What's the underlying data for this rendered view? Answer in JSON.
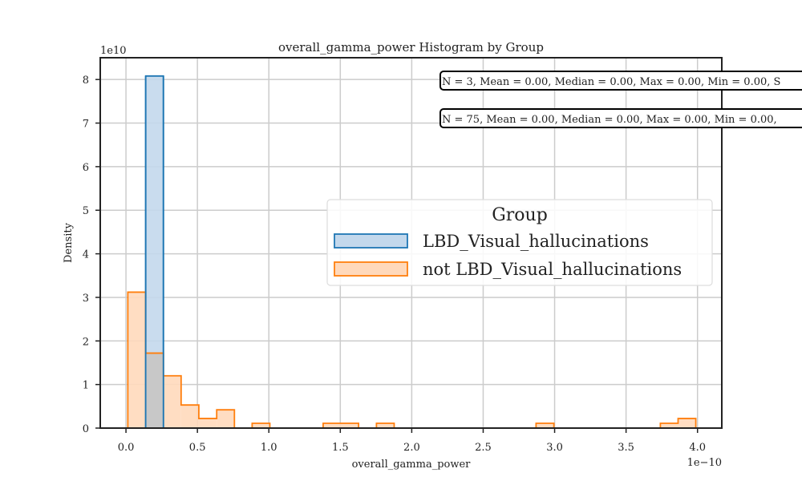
{
  "chart_data": {
    "type": "bar",
    "title": "overall_gamma_power Histogram by Group",
    "xlabel": "overall_gamma_power",
    "ylabel": "Density",
    "x_offset_label": "1e−10",
    "y_offset_label": "1e10",
    "xlim": [
      -1.8e-11,
      4.17e-10
    ],
    "ylim": [
      0,
      85000000000.0
    ],
    "x_ticks": [
      0,
      5e-11,
      1e-10,
      1.5e-10,
      2e-10,
      2.5e-10,
      3e-10,
      3.5e-10,
      4e-10
    ],
    "x_tick_labels": [
      "0.0",
      "0.5",
      "1.0",
      "1.5",
      "2.0",
      "2.5",
      "3.0",
      "3.5",
      "4.0"
    ],
    "y_ticks": [
      0,
      10000000000.0,
      20000000000.0,
      30000000000.0,
      40000000000.0,
      50000000000.0,
      60000000000.0,
      70000000000.0,
      80000000000.0
    ],
    "y_tick_labels": [
      "0",
      "1",
      "2",
      "3",
      "4",
      "5",
      "6",
      "7",
      "8"
    ],
    "grid": true,
    "legend": {
      "title": "Group",
      "placement": "center-right",
      "entries": [
        "LBD_Visual_hallucinations",
        "not LBD_Visual_hallucinations"
      ]
    },
    "annotations": [
      "N = 3, Mean = 0.00, Median = 0.00, Max = 0.00, Min = 0.00, S",
      "N = 75, Mean = 0.00, Median = 0.00, Max = 0.00, Min = 0.00,"
    ],
    "series": [
      {
        "name": "LBD_Visual_hallucinations",
        "color": "#1f77b4",
        "fill": "#c3d8ec",
        "bins": [
          {
            "x0": 1.38e-11,
            "x1": 2.62e-11,
            "density": 80800000000.0
          }
        ]
      },
      {
        "name": "not LBD_Visual_hallucinations",
        "color": "#ff7f0e",
        "fill": "#ffd9bb",
        "bins": [
          {
            "x0": 1.3e-12,
            "x1": 1.38e-11,
            "density": 31200000000.0
          },
          {
            "x0": 1.38e-11,
            "x1": 2.62e-11,
            "density": 17200000000.0
          },
          {
            "x0": 2.62e-11,
            "x1": 3.86e-11,
            "density": 12000000000.0
          },
          {
            "x0": 3.86e-11,
            "x1": 5.1e-11,
            "density": 5300000000.0
          },
          {
            "x0": 5.1e-11,
            "x1": 6.35e-11,
            "density": 2200000000.0
          },
          {
            "x0": 6.35e-11,
            "x1": 7.59e-11,
            "density": 4200000000.0
          },
          {
            "x0": 7.59e-11,
            "x1": 8.83e-11,
            "density": 0
          },
          {
            "x0": 8.83e-11,
            "x1": 1.007e-10,
            "density": 1100000000.0
          },
          {
            "x0": 1.007e-10,
            "x1": 1.132e-10,
            "density": 0
          },
          {
            "x0": 1.132e-10,
            "x1": 1.256e-10,
            "density": 0
          },
          {
            "x0": 1.256e-10,
            "x1": 1.38e-10,
            "density": 0
          },
          {
            "x0": 1.38e-10,
            "x1": 1.504e-10,
            "density": 1100000000.0
          },
          {
            "x0": 1.504e-10,
            "x1": 1.628e-10,
            "density": 1100000000.0
          },
          {
            "x0": 1.628e-10,
            "x1": 1.753e-10,
            "density": 0
          },
          {
            "x0": 1.753e-10,
            "x1": 1.877e-10,
            "density": 1100000000.0
          },
          {
            "x0": 1.877e-10,
            "x1": 2.001e-10,
            "density": 0
          },
          {
            "x0": 2.001e-10,
            "x1": 2.125e-10,
            "density": 0
          },
          {
            "x0": 2.125e-10,
            "x1": 2.249e-10,
            "density": 0
          },
          {
            "x0": 2.249e-10,
            "x1": 2.374e-10,
            "density": 0
          },
          {
            "x0": 2.374e-10,
            "x1": 2.498e-10,
            "density": 0
          },
          {
            "x0": 2.498e-10,
            "x1": 2.622e-10,
            "density": 0
          },
          {
            "x0": 2.622e-10,
            "x1": 2.746e-10,
            "density": 0
          },
          {
            "x0": 2.746e-10,
            "x1": 2.87e-10,
            "density": 0
          },
          {
            "x0": 2.87e-10,
            "x1": 2.995e-10,
            "density": 1100000000.0
          },
          {
            "x0": 2.995e-10,
            "x1": 3.119e-10,
            "density": 0
          },
          {
            "x0": 3.119e-10,
            "x1": 3.243e-10,
            "density": 0
          },
          {
            "x0": 3.243e-10,
            "x1": 3.367e-10,
            "density": 0
          },
          {
            "x0": 3.367e-10,
            "x1": 3.491e-10,
            "density": 0
          },
          {
            "x0": 3.491e-10,
            "x1": 3.616e-10,
            "density": 0
          },
          {
            "x0": 3.616e-10,
            "x1": 3.74e-10,
            "density": 0
          },
          {
            "x0": 3.74e-10,
            "x1": 3.864e-10,
            "density": 1100000000.0
          },
          {
            "x0": 3.864e-10,
            "x1": 3.988e-10,
            "density": 2200000000.0
          }
        ]
      }
    ]
  }
}
